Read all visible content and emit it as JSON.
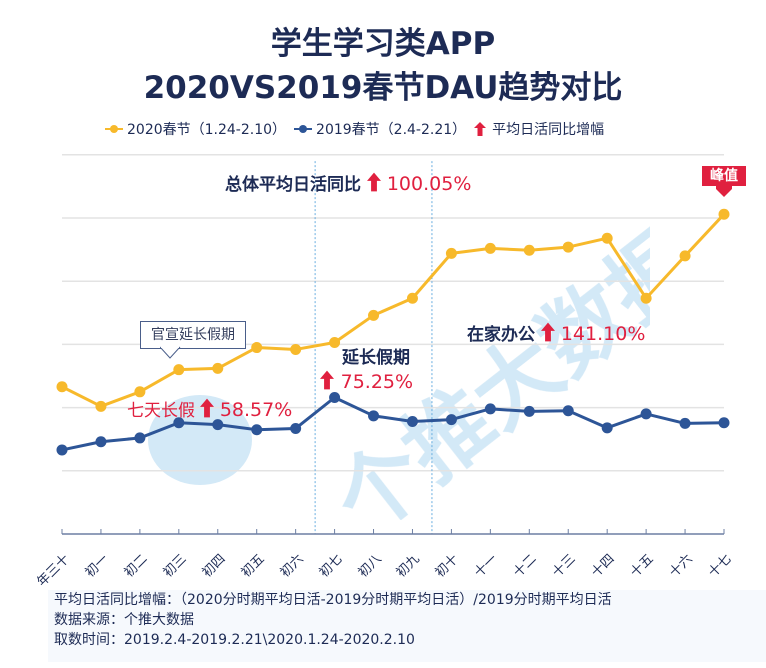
{
  "title_line1": "学生学习类APP",
  "title_line2": "2020VS2019春节DAU趋势对比",
  "legend": [
    {
      "label": "2020春节（1.24-2.10）",
      "color": "#f7b92b",
      "marker": "line-dot"
    },
    {
      "label": "2019春节（2.4-2.21）",
      "color": "#2d5597",
      "marker": "line-dot"
    },
    {
      "label": "平均日活同比增幅",
      "color": "#e0203f",
      "marker": "arrow-up-icon"
    }
  ],
  "annotations": {
    "overall_label": "总体平均日活同比",
    "overall_value": "100.05%",
    "seven_day_label": "七天长假",
    "seven_day_value": "58.57%",
    "extended_label": "延长假期",
    "extended_value": "75.25%",
    "home_label": "在家办公",
    "home_value": "141.10%",
    "callout": "官宣延长假期",
    "peak": "峰值"
  },
  "watermark": "个推大数据",
  "footnote": {
    "line1": "平均日活同比增幅：（2020分时期平均日活-2019分时期平均日活）/2019分时期平均日活",
    "line2": "数据来源：个推大数据",
    "line3": "取数时间：2019.2.4-2019.2.21\\2020.1.24-2020.2.10"
  },
  "chart_data": {
    "type": "line",
    "title": "学生学习类APP 2020VS2019春节DAU趋势对比",
    "xlabel": "",
    "ylabel": "",
    "y_units": "relative (no y-axis labels shown; 1 unit = 1 gridline)",
    "ylim": [
      0,
      6
    ],
    "grid": true,
    "legend_position": "top",
    "categories": [
      "年三十",
      "初一",
      "初二",
      "初三",
      "初四",
      "初五",
      "初六",
      "初七",
      "初八",
      "初九",
      "初十",
      "十一",
      "十二",
      "十三",
      "十四",
      "十五",
      "十六",
      "十七"
    ],
    "series": [
      {
        "name": "2020春节（1.24-2.10）",
        "color": "#f7b92b",
        "values": [
          2.33,
          2.02,
          2.25,
          2.6,
          2.62,
          2.95,
          2.92,
          3.03,
          3.46,
          3.73,
          4.44,
          4.52,
          4.49,
          4.54,
          4.68,
          3.73,
          4.4,
          5.06
        ]
      },
      {
        "name": "2019春节（2.4-2.21）",
        "color": "#2d5597",
        "values": [
          1.33,
          1.46,
          1.52,
          1.76,
          1.73,
          1.65,
          1.67,
          2.16,
          1.87,
          1.78,
          1.81,
          1.98,
          1.94,
          1.95,
          1.68,
          1.9,
          1.75,
          1.76
        ]
      }
    ],
    "period_dividers_after": [
      "初六",
      "初九"
    ],
    "annotations": [
      {
        "text": "总体平均日活同比 ↑100.05%"
      },
      {
        "text": "七天长假 ↑58.57%",
        "period": "年三十-初六"
      },
      {
        "text": "延长假期 ↑75.25%",
        "period": "初七-初九"
      },
      {
        "text": "在家办公 ↑141.10%",
        "period": "初十-十七"
      },
      {
        "text": "官宣延长假期",
        "at": "初三"
      },
      {
        "text": "峰值",
        "at": "十七"
      }
    ]
  }
}
